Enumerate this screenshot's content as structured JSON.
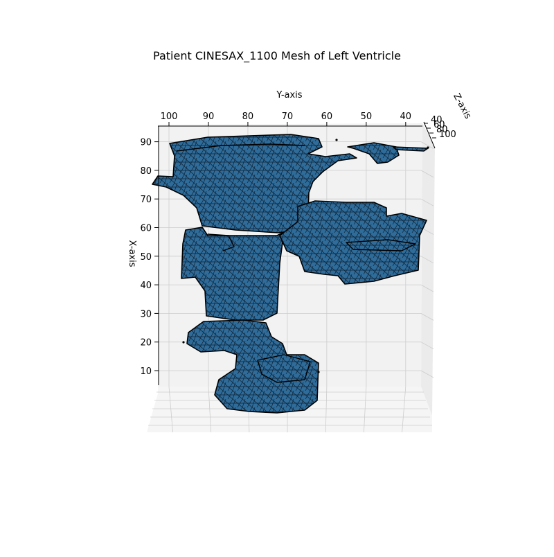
{
  "chart_data": {
    "type": "surface3d",
    "title": "Patient CINESAX_1100 Mesh of Left Ventricle",
    "xlabel": "X-axis",
    "ylabel": "Y-axis",
    "zlabel": "Z-axis",
    "x_ticks": [
      10,
      20,
      30,
      40,
      50,
      60,
      70,
      80,
      90
    ],
    "y_ticks": [
      100,
      90,
      80,
      70,
      60,
      50,
      40
    ],
    "z_ticks": [
      40,
      60,
      80,
      100
    ],
    "xlim": [
      0,
      95
    ],
    "ylim": [
      35,
      105
    ],
    "pane_color": "#f2f2f2",
    "grid": true,
    "mesh_face_color": "#2f6c9a",
    "mesh_edge_color": "#000000"
  }
}
